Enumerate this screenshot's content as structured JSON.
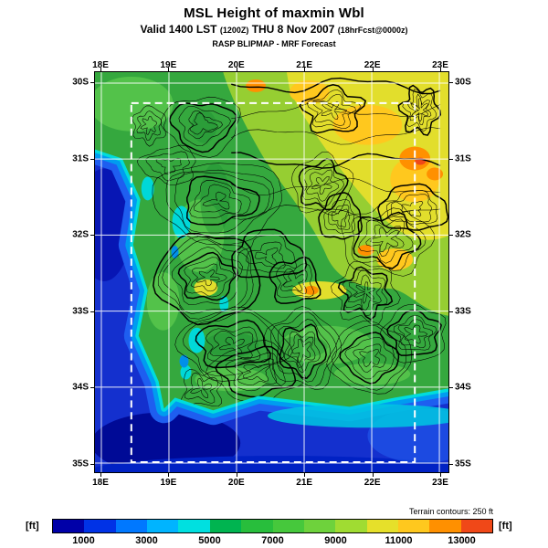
{
  "header": {
    "title": "MSL Height of maxmin Wbl",
    "valid": {
      "prefix": "Valid 1400 LST",
      "zulu": "(1200Z)",
      "date": "THU 8 Nov 2007",
      "fcst": "(18hrFcst@0000z)"
    },
    "model_line": "RASP BLIPMAP - MRF Forecast"
  },
  "map": {
    "lon_labels": [
      "18E",
      "19E",
      "20E",
      "21E",
      "22E",
      "23E"
    ],
    "lat_labels": [
      "30S",
      "31S",
      "32S",
      "33S",
      "34S",
      "35S"
    ],
    "grid_color": "#FFFFFF",
    "domain_box_color": "#FFFFFF",
    "contour_color": "#000000"
  },
  "colorbar": {
    "unit_left": "[ft]",
    "unit_right": "[ft]",
    "note": "Terrain contours: 250 ft",
    "tick_labels": [
      "1000",
      "3000",
      "5000",
      "7000",
      "9000",
      "11000",
      "13000"
    ],
    "range_ft": [
      0,
      14000
    ],
    "segment_colors": [
      "#0000A8",
      "#0032E6",
      "#0078FF",
      "#00B4FF",
      "#00E0E0",
      "#00B450",
      "#28BE3C",
      "#46C83C",
      "#6ED23C",
      "#A0DC32",
      "#E6E02A",
      "#FFC81E",
      "#FF9000",
      "#F04818"
    ]
  },
  "chart_data": {
    "type": "heatmap",
    "title": "MSL Height of maxmin Wbl",
    "units": "ft",
    "colorbar_range": [
      0,
      14000
    ],
    "colorbar_ticks": [
      1000,
      3000,
      5000,
      7000,
      9000,
      11000,
      13000
    ],
    "x_axis": {
      "label": "longitude",
      "ticks": [
        "18E",
        "19E",
        "20E",
        "21E",
        "22E",
        "23E"
      ]
    },
    "y_axis": {
      "label": "latitude",
      "ticks": [
        "30S",
        "31S",
        "32S",
        "33S",
        "34S",
        "35S"
      ]
    },
    "terrain_contour_interval_ft": 250,
    "pattern": "Blues (1000-4000 ft) over ocean to the west and south; greens (5000-8000 ft) over coastal land; yellows and oranges (9000-13000 ft) over the northeastern interior; dense black terrain contours along the mountain belt"
  }
}
